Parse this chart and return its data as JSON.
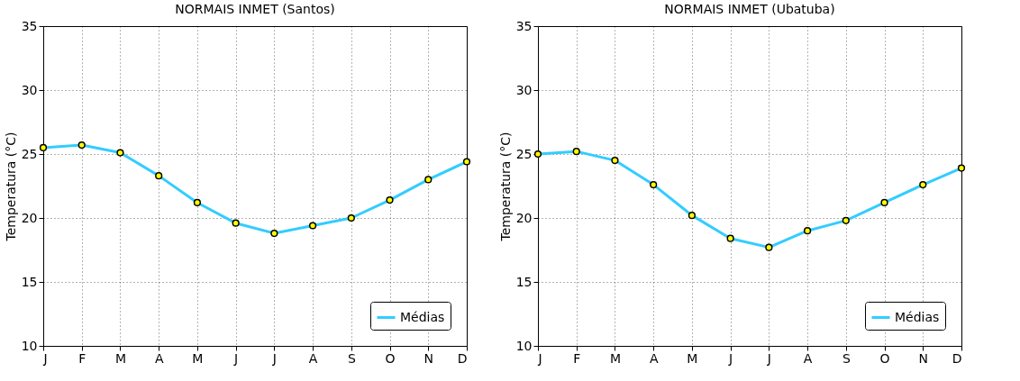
{
  "chart_data": [
    {
      "type": "line",
      "title": "NORMAIS INMET (Santos)",
      "ylabel": "Temperatura (°C)",
      "categories": [
        "J",
        "F",
        "M",
        "A",
        "M",
        "J",
        "J",
        "A",
        "S",
        "O",
        "N",
        "D"
      ],
      "series": [
        {
          "name": "Médias",
          "color": "#33ccff",
          "values": [
            25.5,
            25.7,
            25.1,
            23.3,
            21.2,
            19.6,
            18.8,
            19.4,
            20.0,
            21.4,
            23.0,
            24.4
          ]
        }
      ],
      "ylim": [
        10,
        35
      ],
      "yticks": [
        10,
        15,
        20,
        25,
        30,
        35
      ],
      "grid": true,
      "legend": "bottom right",
      "marker": "circle",
      "line_style": "solid"
    },
    {
      "type": "line",
      "title": "NORMAIS INMET (Ubatuba)",
      "ylabel": "Temperatura (°C)",
      "categories": [
        "J",
        "F",
        "M",
        "A",
        "M",
        "J",
        "J",
        "A",
        "S",
        "O",
        "N",
        "D"
      ],
      "series": [
        {
          "name": "Médias",
          "color": "#33ccff",
          "values": [
            25.0,
            25.2,
            24.5,
            22.6,
            20.2,
            18.4,
            17.7,
            19.0,
            19.8,
            21.2,
            22.6,
            23.9
          ]
        }
      ],
      "ylim": [
        10,
        35
      ],
      "yticks": [
        10,
        15,
        20,
        25,
        30,
        35
      ],
      "grid": true,
      "legend": "bottom right",
      "marker": "circle",
      "line_style": "solid"
    }
  ]
}
